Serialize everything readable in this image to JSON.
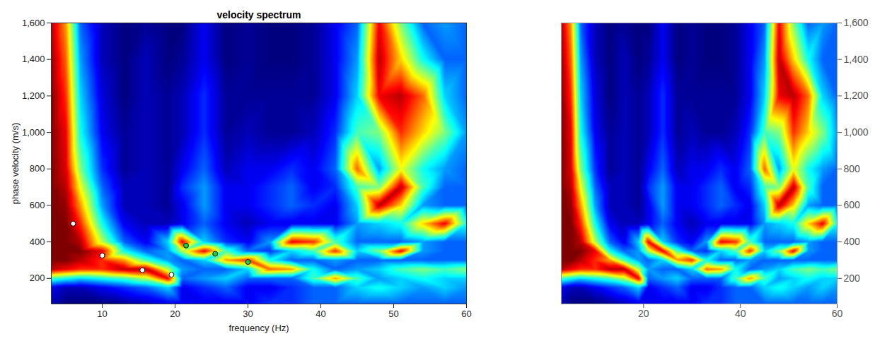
{
  "chart_data": [
    {
      "type": "heatmap",
      "title": "velocity spectrum",
      "x_label": "frequency (Hz)",
      "y_label": "phase velocity (m/s)",
      "xlim": [
        3,
        60
      ],
      "ylim": [
        60,
        1600
      ],
      "xticks": [
        10,
        20,
        30,
        40,
        50,
        60
      ],
      "yticks": [
        200,
        400,
        600,
        800,
        1000,
        1200,
        1400,
        1600
      ],
      "x": [
        3,
        5,
        7,
        10,
        13,
        16,
        19,
        21,
        24,
        27,
        30,
        33,
        36,
        39,
        42,
        45,
        48,
        51,
        54,
        57,
        60
      ],
      "y": [
        60,
        150,
        200,
        250,
        300,
        350,
        400,
        500,
        600,
        700,
        800,
        1000,
        1200,
        1400,
        1600
      ],
      "z": [
        [
          0.15,
          0.1,
          0.1,
          0.1,
          0.12,
          0.15,
          0.2,
          0.2,
          0.2,
          0.2,
          0.2,
          0.25,
          0.25,
          0.3,
          0.3,
          0.3,
          0.3,
          0.3,
          0.3,
          0.3,
          0.3
        ],
        [
          0.2,
          0.15,
          0.15,
          0.2,
          0.25,
          0.3,
          0.4,
          0.2,
          0.25,
          0.3,
          0.2,
          0.2,
          0.25,
          0.3,
          0.3,
          0.4,
          0.45,
          0.4,
          0.35,
          0.4,
          0.35
        ],
        [
          0.5,
          0.45,
          0.4,
          0.45,
          0.5,
          0.6,
          0.9,
          0.3,
          0.35,
          0.4,
          0.3,
          0.3,
          0.3,
          0.5,
          0.75,
          0.5,
          0.35,
          0.4,
          0.45,
          0.4,
          0.4
        ],
        [
          0.95,
          0.9,
          0.85,
          0.85,
          0.95,
          0.95,
          0.6,
          0.35,
          0.3,
          0.3,
          0.4,
          0.8,
          0.75,
          0.45,
          0.3,
          0.35,
          0.4,
          0.5,
          0.55,
          0.5,
          0.55
        ],
        [
          1,
          1,
          0.95,
          0.85,
          0.75,
          0.5,
          0.35,
          0.3,
          0.4,
          0.75,
          0.85,
          0.45,
          0.3,
          0.3,
          0.35,
          0.3,
          0.3,
          0.3,
          0.3,
          0.3,
          0.3
        ],
        [
          1,
          1,
          1,
          0.9,
          0.45,
          0.3,
          0.35,
          0.6,
          0.9,
          0.5,
          0.3,
          0.25,
          0.4,
          0.5,
          0.85,
          0.4,
          0.55,
          0.9,
          0.35,
          0.3,
          0.3
        ],
        [
          1,
          1,
          0.95,
          0.6,
          0.3,
          0.2,
          0.4,
          0.9,
          0.4,
          0.25,
          0.2,
          0.35,
          0.9,
          0.85,
          0.5,
          0.3,
          0.3,
          0.3,
          0.35,
          0.3,
          0.3
        ],
        [
          1,
          1,
          0.85,
          0.45,
          0.2,
          0.15,
          0.15,
          0.2,
          0.3,
          0.2,
          0.15,
          0.2,
          0.2,
          0.2,
          0.2,
          0.35,
          0.4,
          0.45,
          0.7,
          0.9,
          0.45
        ],
        [
          1,
          0.98,
          0.75,
          0.35,
          0.15,
          0.15,
          0.12,
          0.2,
          0.35,
          0.2,
          0.2,
          0.25,
          0.3,
          0.25,
          0.2,
          0.4,
          0.95,
          0.7,
          0.35,
          0.3,
          0.3
        ],
        [
          1,
          0.95,
          0.65,
          0.3,
          0.15,
          0.15,
          0.12,
          0.25,
          0.35,
          0.2,
          0.2,
          0.25,
          0.3,
          0.2,
          0.25,
          0.5,
          0.55,
          0.95,
          0.5,
          0.3,
          0.3
        ],
        [
          1,
          0.92,
          0.55,
          0.25,
          0.12,
          0.15,
          0.12,
          0.2,
          0.3,
          0.15,
          0.2,
          0.2,
          0.25,
          0.2,
          0.3,
          0.8,
          0.35,
          0.65,
          0.45,
          0.35,
          0.3
        ],
        [
          1,
          0.9,
          0.45,
          0.2,
          0.12,
          0.15,
          0.12,
          0.15,
          0.25,
          0.12,
          0.15,
          0.12,
          0.12,
          0.15,
          0.25,
          0.5,
          0.55,
          0.85,
          0.7,
          0.55,
          0.35
        ],
        [
          1,
          0.85,
          0.4,
          0.18,
          0.1,
          0.15,
          0.12,
          0.15,
          0.25,
          0.12,
          0.12,
          0.12,
          0.12,
          0.12,
          0.2,
          0.4,
          0.9,
          0.95,
          0.8,
          0.4,
          0.3
        ],
        [
          0.98,
          0.8,
          0.35,
          0.15,
          0.1,
          0.15,
          0.1,
          0.12,
          0.2,
          0.1,
          0.12,
          0.1,
          0.1,
          0.12,
          0.2,
          0.35,
          0.95,
          0.7,
          0.45,
          0.3,
          0.3
        ],
        [
          0.95,
          0.75,
          0.3,
          0.15,
          0.1,
          0.12,
          0.1,
          0.1,
          0.2,
          0.1,
          0.12,
          0.1,
          0.1,
          0.12,
          0.2,
          0.3,
          0.9,
          0.55,
          0.3,
          0.35,
          0.3
        ]
      ],
      "series": [
        {
          "color": "#ffffff",
          "marker": "circle",
          "x": [
            6,
            10,
            15.5,
            19.5
          ],
          "values": [
            500,
            325,
            245,
            220
          ]
        },
        {
          "color": "#22cc44",
          "marker": "circle",
          "x": [
            21.5,
            25.5,
            30
          ],
          "values": [
            380,
            335,
            290
          ]
        }
      ]
    },
    {
      "type": "surface",
      "xlim": [
        3,
        60
      ],
      "ylim": [
        60,
        1600
      ],
      "xticks": [
        20,
        40,
        60
      ],
      "yticks": [
        200,
        400,
        600,
        800,
        1000,
        1200,
        1400,
        1600
      ],
      "x": [
        3,
        5,
        7,
        10,
        13,
        16,
        19,
        21,
        24,
        27,
        30,
        33,
        36,
        39,
        42,
        45,
        48,
        51,
        54,
        57,
        60
      ],
      "y": [
        60,
        150,
        200,
        250,
        300,
        350,
        400,
        500,
        600,
        700,
        800,
        1000,
        1200,
        1400,
        1600
      ],
      "z": [
        [
          0.15,
          0.1,
          0.1,
          0.1,
          0.12,
          0.15,
          0.2,
          0.2,
          0.2,
          0.2,
          0.2,
          0.25,
          0.25,
          0.3,
          0.3,
          0.3,
          0.3,
          0.3,
          0.3,
          0.3,
          0.3
        ],
        [
          0.2,
          0.15,
          0.15,
          0.2,
          0.25,
          0.3,
          0.4,
          0.2,
          0.25,
          0.3,
          0.2,
          0.2,
          0.25,
          0.3,
          0.3,
          0.4,
          0.45,
          0.4,
          0.35,
          0.4,
          0.35
        ],
        [
          0.5,
          0.45,
          0.4,
          0.45,
          0.5,
          0.6,
          0.9,
          0.3,
          0.35,
          0.4,
          0.3,
          0.3,
          0.3,
          0.5,
          0.75,
          0.5,
          0.35,
          0.4,
          0.45,
          0.4,
          0.4
        ],
        [
          0.95,
          0.9,
          0.85,
          0.85,
          0.95,
          0.95,
          0.6,
          0.35,
          0.3,
          0.3,
          0.4,
          0.8,
          0.75,
          0.45,
          0.3,
          0.35,
          0.4,
          0.5,
          0.55,
          0.5,
          0.55
        ],
        [
          1,
          1,
          0.95,
          0.85,
          0.75,
          0.5,
          0.35,
          0.3,
          0.4,
          0.75,
          0.85,
          0.45,
          0.3,
          0.3,
          0.35,
          0.3,
          0.3,
          0.3,
          0.3,
          0.3,
          0.3
        ],
        [
          1,
          1,
          1,
          0.9,
          0.45,
          0.3,
          0.35,
          0.6,
          0.9,
          0.5,
          0.3,
          0.25,
          0.4,
          0.5,
          0.85,
          0.4,
          0.55,
          0.9,
          0.35,
          0.3,
          0.3
        ],
        [
          1,
          1,
          0.95,
          0.6,
          0.3,
          0.2,
          0.4,
          0.9,
          0.4,
          0.25,
          0.2,
          0.35,
          0.9,
          0.85,
          0.5,
          0.3,
          0.3,
          0.3,
          0.35,
          0.3,
          0.3
        ],
        [
          1,
          1,
          0.85,
          0.45,
          0.2,
          0.15,
          0.15,
          0.2,
          0.3,
          0.2,
          0.15,
          0.2,
          0.2,
          0.2,
          0.2,
          0.35,
          0.4,
          0.45,
          0.7,
          0.9,
          0.45
        ],
        [
          1,
          0.98,
          0.75,
          0.35,
          0.15,
          0.15,
          0.12,
          0.2,
          0.35,
          0.2,
          0.2,
          0.25,
          0.3,
          0.25,
          0.2,
          0.4,
          0.95,
          0.7,
          0.35,
          0.3,
          0.3
        ],
        [
          1,
          0.95,
          0.65,
          0.3,
          0.15,
          0.15,
          0.12,
          0.25,
          0.35,
          0.2,
          0.2,
          0.25,
          0.3,
          0.2,
          0.25,
          0.5,
          0.55,
          0.95,
          0.5,
          0.3,
          0.3
        ],
        [
          1,
          0.92,
          0.55,
          0.25,
          0.12,
          0.15,
          0.12,
          0.2,
          0.3,
          0.15,
          0.2,
          0.2,
          0.25,
          0.2,
          0.3,
          0.8,
          0.35,
          0.65,
          0.45,
          0.35,
          0.3
        ],
        [
          1,
          0.9,
          0.45,
          0.2,
          0.12,
          0.15,
          0.12,
          0.15,
          0.25,
          0.12,
          0.15,
          0.12,
          0.12,
          0.15,
          0.25,
          0.5,
          0.55,
          0.85,
          0.7,
          0.55,
          0.35
        ],
        [
          1,
          0.85,
          0.4,
          0.18,
          0.1,
          0.15,
          0.12,
          0.15,
          0.25,
          0.12,
          0.12,
          0.12,
          0.12,
          0.12,
          0.2,
          0.4,
          0.9,
          0.95,
          0.8,
          0.4,
          0.3
        ],
        [
          0.98,
          0.8,
          0.35,
          0.15,
          0.1,
          0.15,
          0.1,
          0.12,
          0.2,
          0.1,
          0.12,
          0.1,
          0.1,
          0.12,
          0.2,
          0.35,
          0.95,
          0.7,
          0.45,
          0.3,
          0.3
        ],
        [
          0.95,
          0.75,
          0.3,
          0.15,
          0.1,
          0.12,
          0.1,
          0.1,
          0.2,
          0.1,
          0.12,
          0.1,
          0.1,
          0.12,
          0.2,
          0.3,
          0.9,
          0.55,
          0.3,
          0.35,
          0.3
        ]
      ]
    }
  ]
}
